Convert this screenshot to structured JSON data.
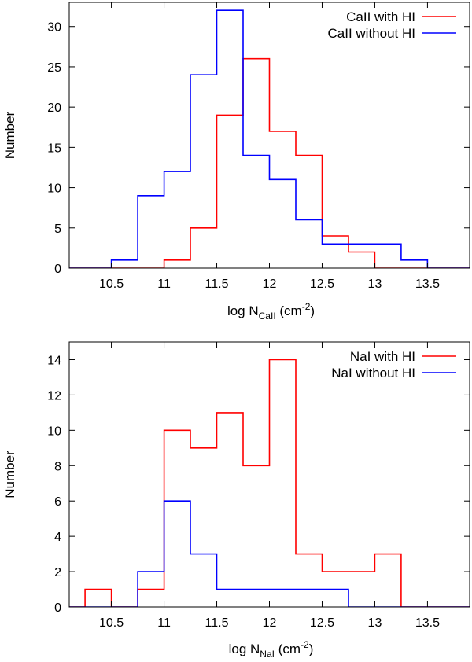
{
  "chart_data": [
    {
      "type": "histogram",
      "xlabel": {
        "prefix": "log N",
        "sub": "CaII",
        "mid": " (cm",
        "sup": "-2",
        "suffix": ")"
      },
      "ylabel": "Number",
      "xlim": [
        10.1,
        13.9
      ],
      "ylim": [
        0,
        33
      ],
      "xticks": [
        "10.5",
        "11",
        "11.5",
        "12",
        "12.5",
        "13",
        "13.5"
      ],
      "xtick_values": [
        10.5,
        11,
        11.5,
        12,
        12.5,
        13,
        13.5
      ],
      "yticks": [
        "0",
        "5",
        "10",
        "15",
        "20",
        "25",
        "30"
      ],
      "ytick_values": [
        0,
        5,
        10,
        15,
        20,
        25,
        30
      ],
      "legend_position": "top-right",
      "bin_edges": [
        10.0,
        10.25,
        10.5,
        10.75,
        11.0,
        11.25,
        11.5,
        11.75,
        12.0,
        12.25,
        12.5,
        12.75,
        13.0,
        13.25,
        13.5,
        13.75,
        14.0
      ],
      "series": [
        {
          "name": "CaII with HI",
          "color": "#ff0000",
          "values": [
            0,
            0,
            0,
            0,
            1,
            5,
            19,
            26,
            17,
            14,
            4,
            2,
            0,
            0,
            0,
            0
          ]
        },
        {
          "name": "CaII without HI",
          "color": "#0000ff",
          "values": [
            0,
            0,
            1,
            9,
            12,
            24,
            32,
            14,
            11,
            6,
            3,
            3,
            3,
            1,
            0,
            0
          ]
        }
      ]
    },
    {
      "type": "histogram",
      "xlabel": {
        "prefix": "log N",
        "sub": "NaI",
        "mid": " (cm",
        "sup": "-2",
        "suffix": ")"
      },
      "ylabel": "Number",
      "xlim": [
        10.1,
        13.9
      ],
      "ylim": [
        0,
        15
      ],
      "xticks": [
        "10.5",
        "11",
        "11.5",
        "12",
        "12.5",
        "13",
        "13.5"
      ],
      "xtick_values": [
        10.5,
        11,
        11.5,
        12,
        12.5,
        13,
        13.5
      ],
      "yticks": [
        "0",
        "2",
        "4",
        "6",
        "8",
        "10",
        "12",
        "14"
      ],
      "ytick_values": [
        0,
        2,
        4,
        6,
        8,
        10,
        12,
        14
      ],
      "legend_position": "top-right",
      "bin_edges": [
        10.0,
        10.25,
        10.5,
        10.75,
        11.0,
        11.25,
        11.5,
        11.75,
        12.0,
        12.25,
        12.5,
        12.75,
        13.0,
        13.25,
        13.5,
        13.75,
        14.0
      ],
      "series": [
        {
          "name": "NaI with HI",
          "color": "#ff0000",
          "values": [
            0,
            1,
            0,
            1,
            10,
            9,
            11,
            8,
            14,
            3,
            2,
            2,
            3,
            0,
            0,
            0
          ]
        },
        {
          "name": "NaI without HI",
          "color": "#0000ff",
          "values": [
            0,
            0,
            0,
            2,
            6,
            3,
            1,
            1,
            1,
            1,
            1,
            0,
            0,
            0,
            0,
            0
          ]
        }
      ]
    }
  ]
}
